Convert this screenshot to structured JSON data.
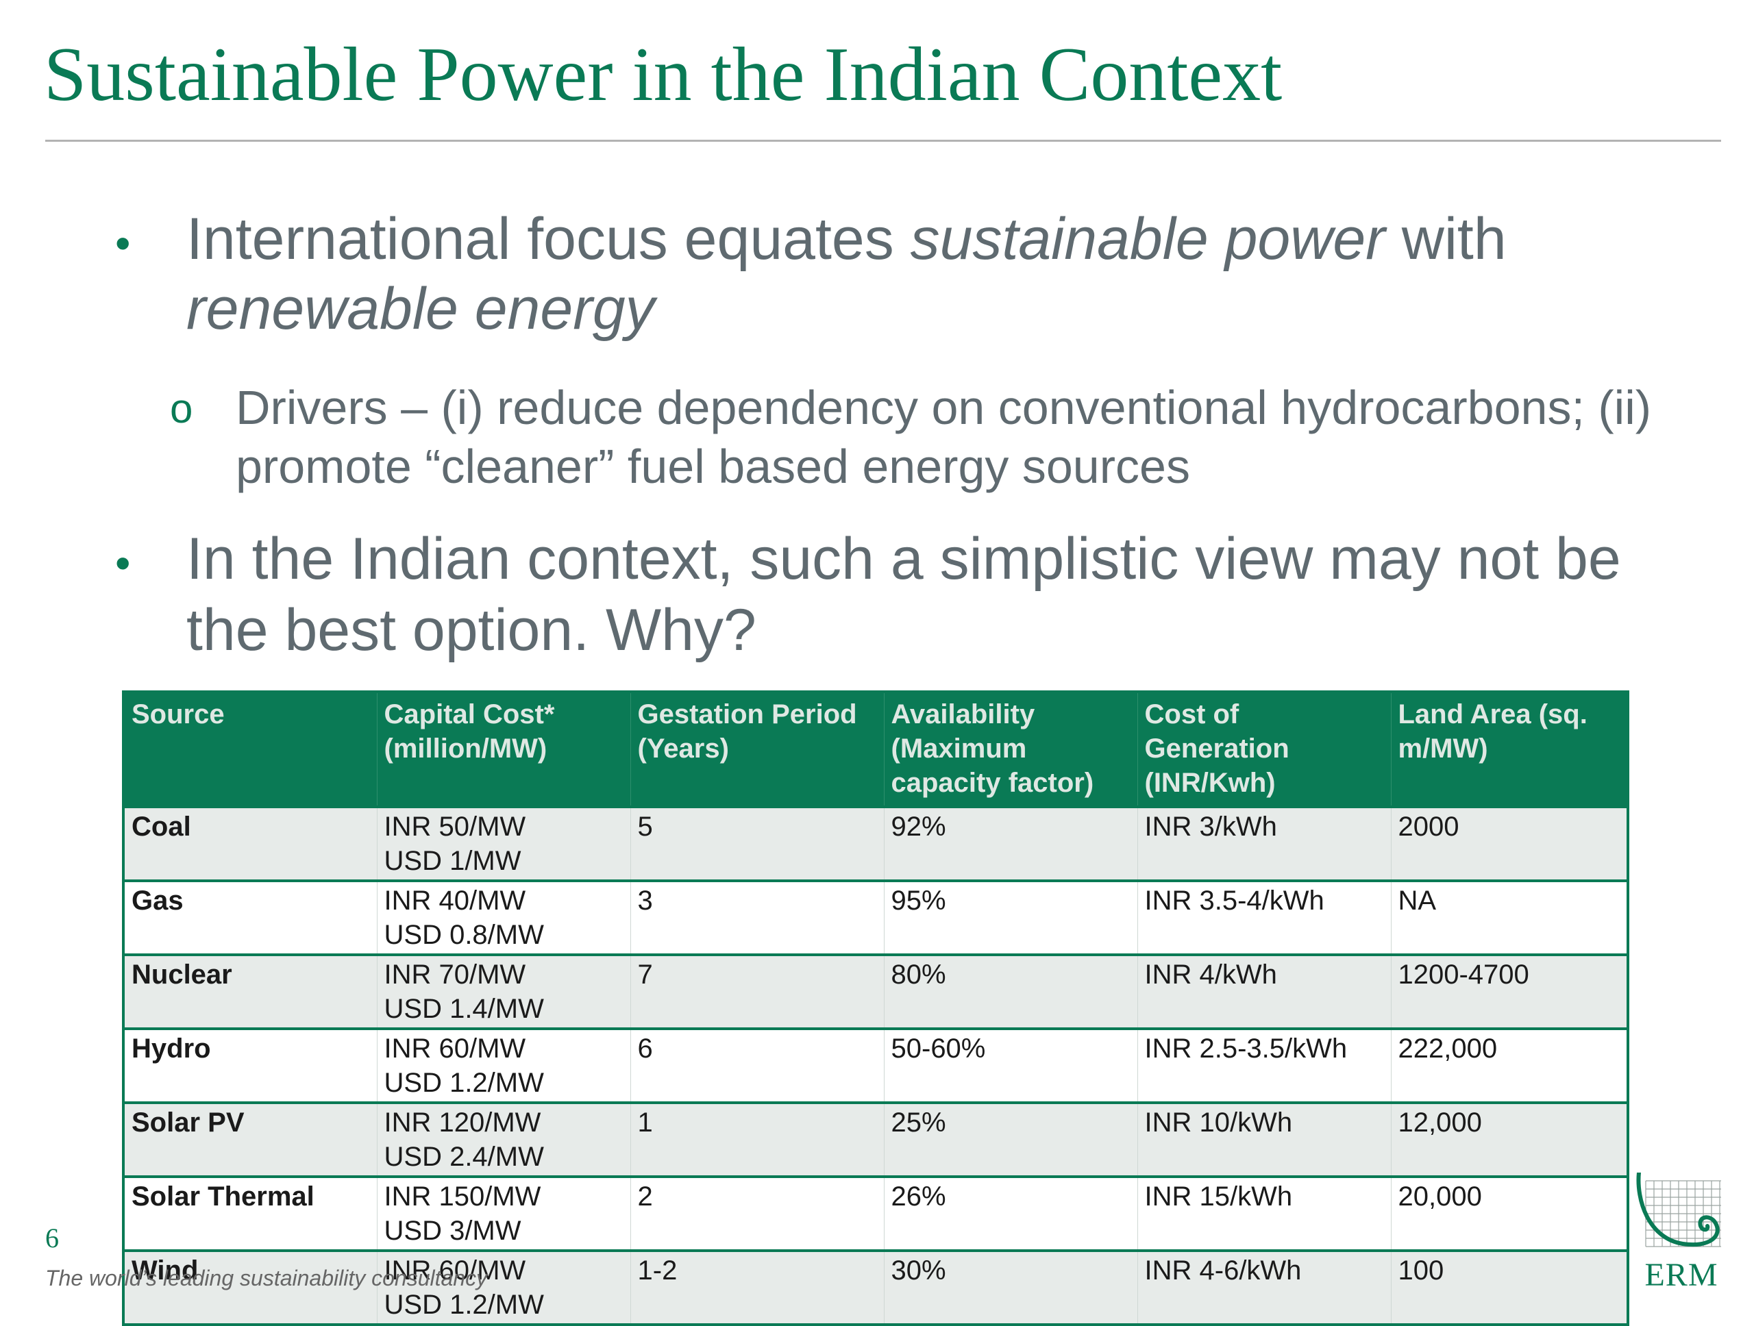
{
  "title": "Sustainable Power in the Indian Context",
  "bullets": {
    "b1": {
      "part1": "International focus equates ",
      "italic1": "sustainable power",
      "part2": " with ",
      "italic2": "renewable energy"
    },
    "b2": {
      "text": "Drivers – (i) reduce dependency on conventional hydrocarbons; (ii) promote “cleaner” fuel based energy sources"
    },
    "b3": {
      "text": "In the Indian context, such a simplistic view may not be the best option. Why?"
    }
  },
  "table": {
    "headers": [
      "Source",
      "Capital Cost* (million/MW)",
      "Gestation Period (Years)",
      "Availability (Maximum capacity factor)",
      "Cost of Generation (INR/Kwh)",
      "Land Area (sq. m/MW)"
    ],
    "rows": [
      {
        "source": "Coal",
        "cap_inr": "INR 50/MW",
        "cap_usd": "USD 1/MW",
        "gestation": "5",
        "availability": "92%",
        "cost": "INR 3/kWh",
        "land": "2000"
      },
      {
        "source": "Gas",
        "cap_inr": "INR 40/MW",
        "cap_usd": "USD 0.8/MW",
        "gestation": "3",
        "availability": "95%",
        "cost": "INR 3.5-4/kWh",
        "land": "NA"
      },
      {
        "source": "Nuclear",
        "cap_inr": "INR 70/MW",
        "cap_usd": "USD 1.4/MW",
        "gestation": "7",
        "availability": "80%",
        "cost": "INR 4/kWh",
        "land": "1200-4700"
      },
      {
        "source": "Hydro",
        "cap_inr": "INR 60/MW",
        "cap_usd": "USD 1.2/MW",
        "gestation": "6",
        "availability": "50-60%",
        "cost": "INR 2.5-3.5/kWh",
        "land": "222,000"
      },
      {
        "source": "Solar PV",
        "cap_inr": "INR 120/MW",
        "cap_usd": "USD 2.4/MW",
        "gestation": "1",
        "availability": "25%",
        "cost": "INR 10/kWh",
        "land": "12,000"
      },
      {
        "source": "Solar Thermal",
        "cap_inr": "INR 150/MW",
        "cap_usd": "USD 3/MW",
        "gestation": "2",
        "availability": "26%",
        "cost": "INR 15/kWh",
        "land": "20,000"
      },
      {
        "source": "Wind",
        "cap_inr": "INR 60/MW",
        "cap_usd": "USD 1.2/MW",
        "gestation": "1-2",
        "availability": "30%",
        "cost": "INR 4-6/kWh",
        "land": "100"
      }
    ]
  },
  "footer": {
    "page_number": "6",
    "tagline": "The world’s leading sustainability consultancy",
    "logo_text": "ERM"
  },
  "colors": {
    "brand_green": "#0a7a55",
    "body_text": "#5f6a70",
    "row_shade": "#e7ebe9"
  },
  "icons": {
    "bullet_level1": "filled-dot",
    "bullet_level2": "hollow-circle",
    "logo": "erm-grid-spiral-logo"
  }
}
